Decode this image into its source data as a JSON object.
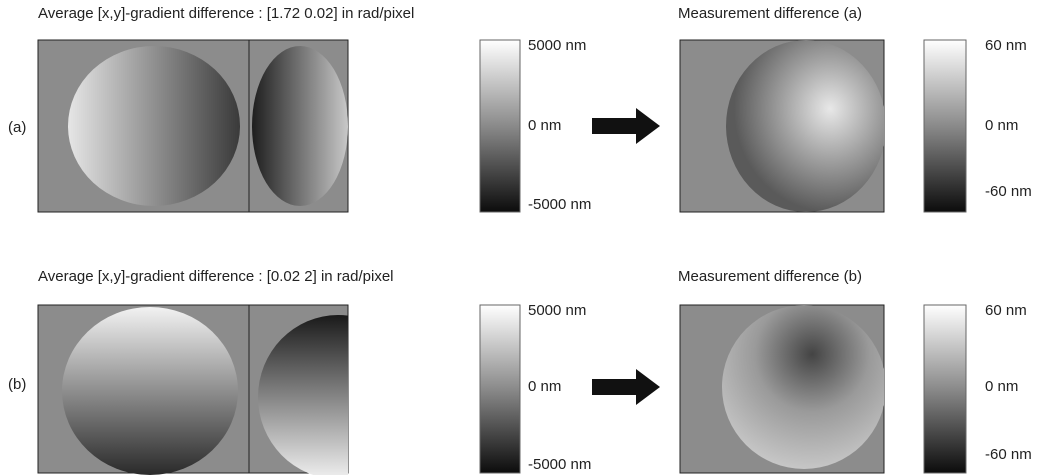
{
  "rows": [
    {
      "label": "(a)",
      "title": "Average [x,y]-gradient difference : [1.72 0.02] in rad/pixel",
      "colorbar_ticks": [
        "5000 nm",
        "0 nm",
        "-5000 nm"
      ],
      "measurement_title": "Measurement difference (a)",
      "measurement_ticks": [
        "60 nm",
        "0 nm",
        "-60 nm"
      ]
    },
    {
      "label": "(b)",
      "title": "Average [x,y]-gradient difference : [0.02 2] in rad/pixel",
      "colorbar_ticks": [
        "5000 nm",
        "0 nm",
        "-5000 nm"
      ],
      "measurement_title": "Measurement difference (b)",
      "measurement_ticks": [
        "60 nm",
        "0 nm",
        "-60 nm"
      ]
    }
  ]
}
